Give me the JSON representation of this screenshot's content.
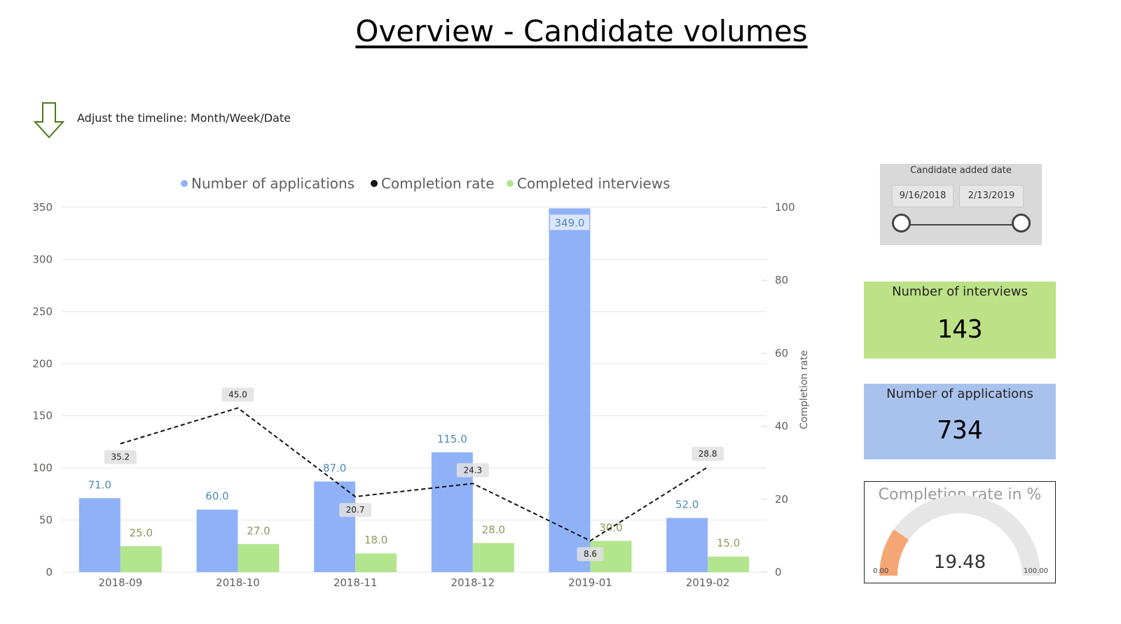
{
  "page": {
    "title": "Overview - Candidate volumes",
    "hint": "Adjust the timeline: Month/Week/Date",
    "hint_icon": "down-arrow-icon"
  },
  "slicer": {
    "title": "Candidate added date",
    "start": "9/16/2018",
    "end": "2/13/2019"
  },
  "cards": {
    "interviews": {
      "label": "Number of interviews",
      "value": "143",
      "color": "#bde187"
    },
    "applications": {
      "label": "Number of applications",
      "value": "734",
      "color": "#a9c2ed"
    }
  },
  "gauge": {
    "label": "Completion rate in %",
    "value": 19.48,
    "value_text": "19.48",
    "min_text": "0.00",
    "max_text": "100.00",
    "min": 0,
    "max": 100,
    "fill_color": "#f4a774",
    "track_color": "#e6e6e6"
  },
  "chart_data": {
    "type": "bar",
    "categories": [
      "2018-09",
      "2018-10",
      "2018-11",
      "2018-12",
      "2019-01",
      "2019-02"
    ],
    "series": [
      {
        "name": "Number of applications",
        "type": "bar",
        "axis": "left",
        "color": "#8fb1f7",
        "label_color": "#4a8cb5",
        "values": [
          71.0,
          60.0,
          87.0,
          115.0,
          349.0,
          52.0
        ],
        "labels": [
          "71.0",
          "60.0",
          "87.0",
          "115.0",
          "349.0",
          "52.0"
        ]
      },
      {
        "name": "Completed interviews",
        "type": "bar",
        "axis": "left",
        "color": "#b3e58f",
        "label_color": "#8a9a5b",
        "values": [
          25.0,
          27.0,
          18.0,
          28.0,
          30.0,
          15.0
        ],
        "labels": [
          "25.0",
          "27.0",
          "18.0",
          "28.0",
          "30.0",
          "15.0"
        ]
      },
      {
        "name": "Completion rate",
        "type": "line",
        "axis": "right",
        "color": "#111111",
        "values": [
          35.2,
          45.0,
          20.7,
          24.3,
          8.6,
          28.8
        ],
        "labels": [
          "35.2",
          "45.0",
          "20.7",
          "24.3",
          "8.6",
          "28.8"
        ]
      }
    ],
    "legend_order": [
      "Number of applications",
      "Completion rate",
      "Completed interviews"
    ],
    "legend_position": "top-center",
    "ylim": [
      0,
      350
    ],
    "yticks": [
      "0",
      "50",
      "100",
      "150",
      "200",
      "250",
      "300",
      "350"
    ],
    "y2lim": [
      0,
      100
    ],
    "y2ticks": [
      "0",
      "20",
      "40",
      "60",
      "80",
      "100"
    ],
    "y2label": "Completion rate",
    "grid": true
  }
}
